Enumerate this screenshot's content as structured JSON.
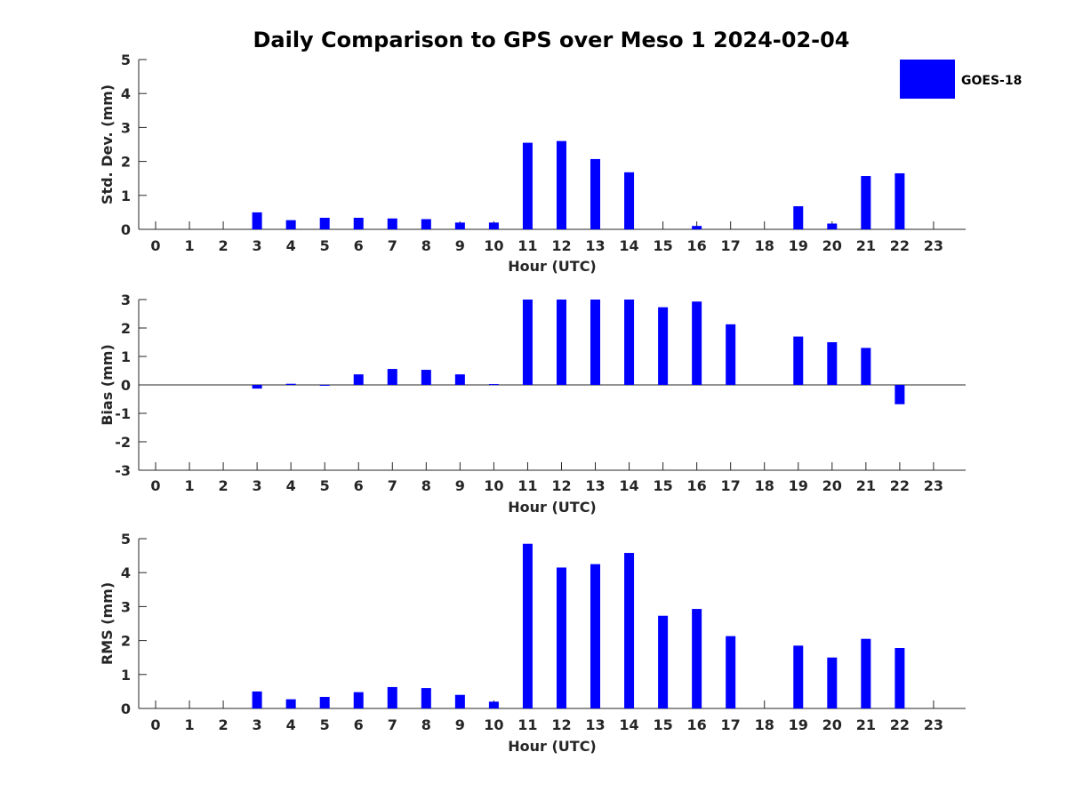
{
  "title": "Daily Comparison to GPS over Meso 1 2024-02-04",
  "colors": {
    "bar": "#0000ff",
    "axis": "#262626",
    "background": "#ffffff"
  },
  "legend": {
    "label": "GOES-18",
    "placement": "top-right"
  },
  "chart_data": [
    {
      "type": "bar",
      "series": [
        {
          "name": "GOES-18",
          "values": [
            null,
            null,
            null,
            0.5,
            0.27,
            0.34,
            0.34,
            0.32,
            0.3,
            0.2,
            0.2,
            2.55,
            2.6,
            2.07,
            1.68,
            null,
            0.1,
            null,
            null,
            0.68,
            0.17,
            1.57,
            1.65,
            null
          ]
        }
      ],
      "categories": [
        "0",
        "1",
        "2",
        "3",
        "4",
        "5",
        "6",
        "7",
        "8",
        "9",
        "10",
        "11",
        "12",
        "13",
        "14",
        "15",
        "16",
        "17",
        "18",
        "19",
        "20",
        "21",
        "22",
        "23"
      ],
      "xlabel": "Hour (UTC)",
      "ylabel": "Std. Dev. (mm)",
      "ylim": [
        0,
        5
      ],
      "yticks": [
        0,
        1,
        2,
        3,
        4,
        5
      ]
    },
    {
      "type": "bar",
      "series": [
        {
          "name": "GOES-18",
          "values": [
            null,
            null,
            null,
            -0.13,
            0.04,
            -0.03,
            0.37,
            0.56,
            0.53,
            0.37,
            0.03,
            3.0,
            3.0,
            3.0,
            3.0,
            2.73,
            2.93,
            2.13,
            null,
            1.7,
            1.5,
            1.3,
            -0.68,
            null
          ]
        }
      ],
      "categories": [
        "0",
        "1",
        "2",
        "3",
        "4",
        "5",
        "6",
        "7",
        "8",
        "9",
        "10",
        "11",
        "12",
        "13",
        "14",
        "15",
        "16",
        "17",
        "18",
        "19",
        "20",
        "21",
        "22",
        "23"
      ],
      "xlabel": "Hour (UTC)",
      "ylabel": "Bias (mm)",
      "ylim": [
        -3,
        3
      ],
      "yticks": [
        -3,
        -2,
        -1,
        0,
        1,
        2,
        3
      ],
      "zero_line": true
    },
    {
      "type": "bar",
      "series": [
        {
          "name": "GOES-18",
          "values": [
            null,
            null,
            null,
            0.5,
            0.27,
            0.34,
            0.48,
            0.63,
            0.6,
            0.4,
            0.2,
            4.85,
            4.15,
            4.25,
            4.58,
            2.73,
            2.93,
            2.13,
            null,
            1.85,
            1.5,
            2.05,
            1.78,
            null
          ]
        }
      ],
      "categories": [
        "0",
        "1",
        "2",
        "3",
        "4",
        "5",
        "6",
        "7",
        "8",
        "9",
        "10",
        "11",
        "12",
        "13",
        "14",
        "15",
        "16",
        "17",
        "18",
        "19",
        "20",
        "21",
        "22",
        "23"
      ],
      "xlabel": "Hour (UTC)",
      "ylabel": "RMS (mm)",
      "ylim": [
        0,
        5
      ],
      "yticks": [
        0,
        1,
        2,
        3,
        4,
        5
      ]
    }
  ]
}
